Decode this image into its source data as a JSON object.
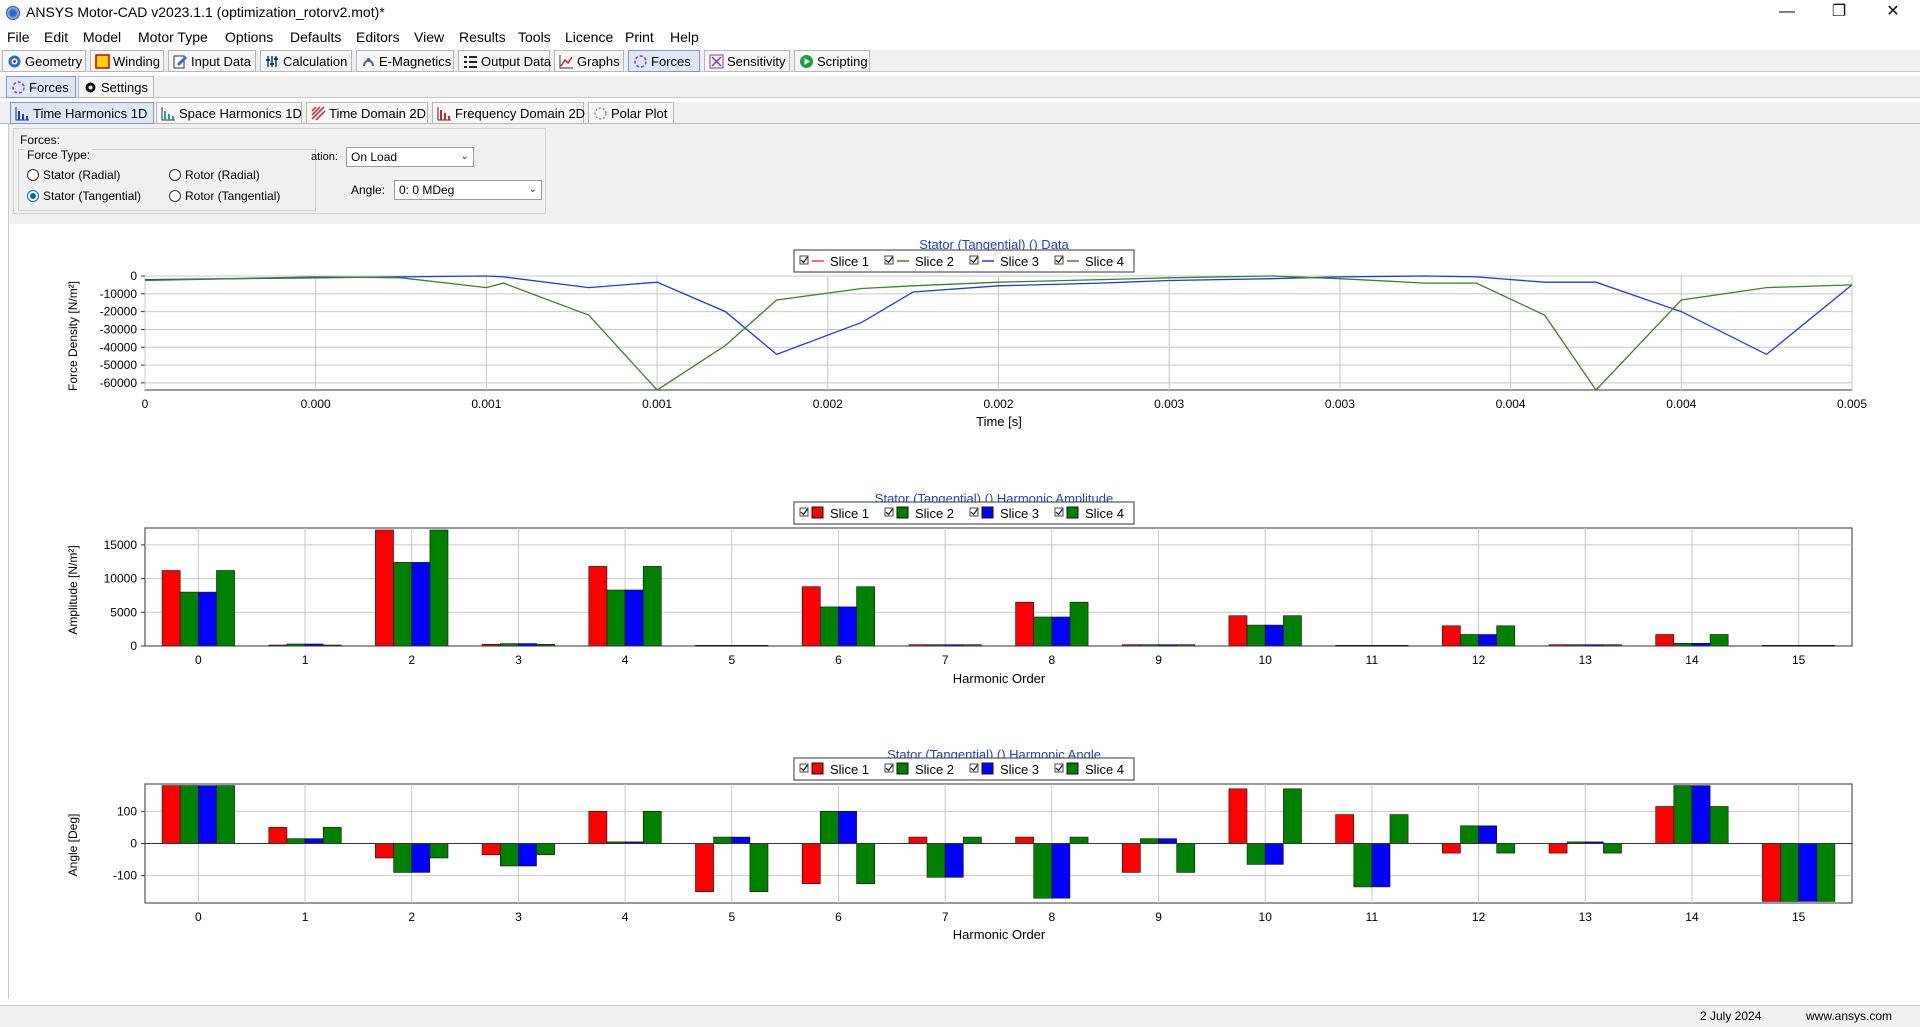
{
  "window": {
    "title": "ANSYS Motor-CAD v2023.1.1 (optimization_rotorv2.mot)*",
    "minimize": "—",
    "maximize": "❐",
    "close": "✕"
  },
  "menu": [
    "File",
    "Edit",
    "Model",
    "Motor Type",
    "Options",
    "Defaults",
    "Editors",
    "View",
    "Results",
    "Tools",
    "Licence",
    "Print",
    "Help"
  ],
  "main_tabs": [
    "Geometry",
    "Winding",
    "Input Data",
    "Calculation",
    "E-Magnetics",
    "Output Data",
    "Graphs",
    "Forces",
    "Sensitivity",
    "Scripting"
  ],
  "sub_tabs": [
    "Forces",
    "Settings"
  ],
  "view_tabs": [
    "Time Harmonics 1D",
    "Space Harmonics 1D",
    "Time Domain 2D",
    "Frequency Domain 2D",
    "Polar Plot"
  ],
  "panel": {
    "forces_label": "Forces:",
    "force_type_label": "Force Type:",
    "radios": {
      "stator_radial": "Stator (Radial)",
      "rotor_radial": "Rotor (Radial)",
      "stator_tangential": "Stator (Tangential)",
      "rotor_tangential": "Rotor (Tangential)"
    },
    "operation_label": "ation:",
    "operation_value": "On Load",
    "angle_label": "Angle:",
    "angle_value": "0:  0 MDeg"
  },
  "legend_labels": [
    "Slice 1",
    "Slice 2",
    "Slice 3",
    "Slice 4"
  ],
  "colors": {
    "line_series": [
      "#ff3b3b",
      "#3f7f2a",
      "#1d3fd0",
      "#3f7f2a"
    ],
    "bar_series": [
      "#ff0000",
      "#008000",
      "#0000ff",
      "#008000"
    ],
    "title": "#1d3fd0"
  },
  "chart_data": [
    {
      "type": "line",
      "title": "Stator (Tangential) () Data",
      "xlabel": "Time [s]",
      "ylabel": "Force Density [N/m²]",
      "xlim": [
        0,
        0.005
      ],
      "ylim": [
        -64000,
        0
      ],
      "x_tick_labels": [
        "0",
        "0.000",
        "0.001",
        "0.001",
        "0.002",
        "0.002",
        "0.003",
        "0.003",
        "0.004",
        "0.004",
        "0.005"
      ],
      "y_tick_labels": [
        "0",
        "-10000",
        "-20000",
        "-30000",
        "-40000",
        "-50000",
        "-60000"
      ],
      "y_ticks": [
        0,
        -10000,
        -20000,
        -30000,
        -40000,
        -50000,
        -60000
      ],
      "grid": true,
      "legend_position": "top-center",
      "series": [
        {
          "name": "Slice 1",
          "visible": false,
          "x": [],
          "y": []
        },
        {
          "name": "Slice 2",
          "visible": false,
          "x": [],
          "y": []
        },
        {
          "name": "Slice 3",
          "x": [
            0,
            0.00025,
            0.0005,
            0.00075,
            0.001,
            0.00105,
            0.0013,
            0.0015,
            0.0017,
            0.00185,
            0.0021,
            0.00225,
            0.0025,
            0.0028,
            0.003,
            0.0033,
            0.0035,
            0.00375,
            0.0039,
            0.0041,
            0.00425,
            0.0045,
            0.00475,
            0.005
          ],
          "y": [
            -2000,
            -1500,
            -1000,
            -500,
            0,
            -500,
            -6500,
            -3500,
            -20000,
            -44000,
            -26000,
            -9000,
            -5500,
            -4000,
            -2500,
            -1500,
            -500,
            0,
            -500,
            -3500,
            -3500,
            -20000,
            -44000,
            -5000
          ]
        },
        {
          "name": "Slice 4",
          "x": [
            0,
            0.00025,
            0.0005,
            0.00075,
            0.001,
            0.00105,
            0.0013,
            0.0015,
            0.0017,
            0.00185,
            0.0021,
            0.00225,
            0.0025,
            0.0028,
            0.003,
            0.0033,
            0.0035,
            0.00375,
            0.0039,
            0.0041,
            0.00425,
            0.0045,
            0.00475,
            0.005
          ],
          "y": [
            -2500,
            -1500,
            -500,
            -1000,
            -6500,
            -4000,
            -22000,
            -64000,
            -39000,
            -13500,
            -7000,
            -5500,
            -3500,
            -2000,
            -1000,
            0,
            -1500,
            -4000,
            -4000,
            -22000,
            -64000,
            -13500,
            -6500,
            -5000
          ]
        }
      ]
    },
    {
      "type": "bar",
      "title": "Stator (Tangential) () Harmonic Amplitude",
      "xlabel": "Harmonic Order",
      "ylabel": "Amplitude [N/m²]",
      "ylim": [
        0,
        17500
      ],
      "y_tick_labels": [
        "0",
        "5000",
        "10000",
        "15000"
      ],
      "y_ticks": [
        0,
        5000,
        10000,
        15000
      ],
      "grid": true,
      "legend_position": "top-center",
      "categories": [
        "0",
        "1",
        "2",
        "3",
        "4",
        "5",
        "6",
        "7",
        "8",
        "9",
        "10",
        "11",
        "12",
        "13",
        "14",
        "15"
      ],
      "series": [
        {
          "name": "Slice 1",
          "values": [
            11200,
            150,
            17200,
            250,
            11800,
            100,
            8800,
            200,
            6500,
            200,
            4500,
            100,
            3000,
            200,
            1700,
            100
          ]
        },
        {
          "name": "Slice 2",
          "values": [
            8000,
            300,
            12400,
            350,
            8300,
            100,
            5800,
            200,
            4300,
            200,
            3100,
            100,
            1700,
            200,
            400,
            100
          ]
        },
        {
          "name": "Slice 3",
          "values": [
            8000,
            300,
            12400,
            350,
            8300,
            100,
            5800,
            200,
            4300,
            200,
            3100,
            100,
            1700,
            200,
            400,
            100
          ]
        },
        {
          "name": "Slice 4",
          "values": [
            11200,
            150,
            17200,
            250,
            11800,
            100,
            8800,
            200,
            6500,
            200,
            4500,
            100,
            3000,
            200,
            1700,
            100
          ]
        }
      ]
    },
    {
      "type": "bar",
      "title": "Stator (Tangential) () Harmonic Angle",
      "xlabel": "Harmonic Order",
      "ylabel": "Angle [Deg]",
      "ylim": [
        -185,
        185
      ],
      "y_tick_labels": [
        "100",
        "0",
        "-100"
      ],
      "y_ticks": [
        100,
        0,
        -100
      ],
      "grid": true,
      "legend_position": "top-center",
      "categories": [
        "0",
        "1",
        "2",
        "3",
        "4",
        "5",
        "6",
        "7",
        "8",
        "9",
        "10",
        "11",
        "12",
        "13",
        "14",
        "15"
      ],
      "series": [
        {
          "name": "Slice 1",
          "values": [
            180,
            50,
            -45,
            -35,
            100,
            -150,
            -125,
            20,
            20,
            -90,
            170,
            90,
            -30,
            -30,
            115,
            -180
          ]
        },
        {
          "name": "Slice 2",
          "values": [
            180,
            15,
            -90,
            -70,
            5,
            20,
            100,
            -105,
            -170,
            15,
            -65,
            -135,
            55,
            5,
            180,
            -180
          ]
        },
        {
          "name": "Slice 3",
          "values": [
            180,
            15,
            -90,
            -70,
            5,
            20,
            100,
            -105,
            -170,
            15,
            -65,
            -135,
            55,
            5,
            180,
            -180
          ]
        },
        {
          "name": "Slice 4",
          "values": [
            180,
            50,
            -45,
            -35,
            100,
            -150,
            -125,
            20,
            20,
            -90,
            170,
            90,
            -30,
            -30,
            115,
            -180
          ]
        }
      ]
    }
  ],
  "status": {
    "date": "2 July 2024",
    "website": "www.ansys.com"
  }
}
